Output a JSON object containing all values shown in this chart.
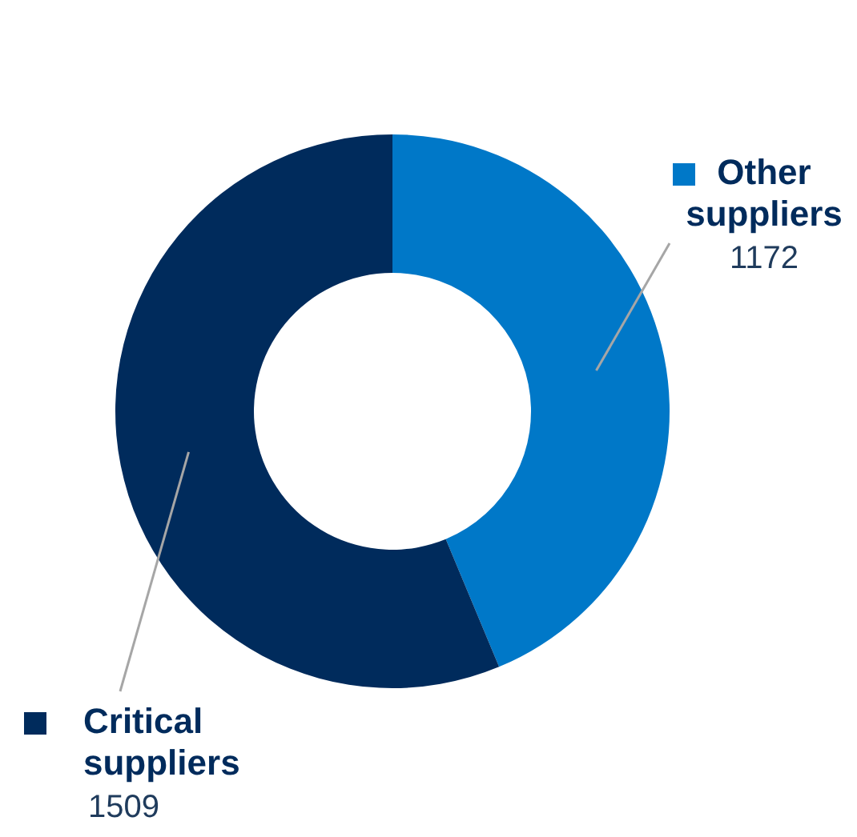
{
  "chart_data": {
    "type": "donut",
    "categories": [
      "Other suppliers",
      "Critical suppliers"
    ],
    "values": [
      1172,
      1509
    ],
    "colors": [
      "#0078c8",
      "#002b5c"
    ],
    "data_labels": true,
    "legend": "right"
  }
}
